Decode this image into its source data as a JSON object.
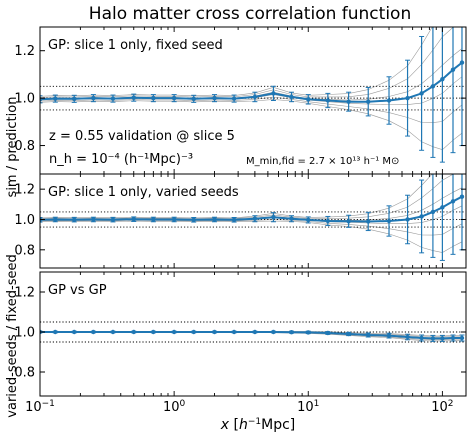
{
  "title": "Halo matter cross correlation function",
  "colors": {
    "data": "#1f77b4",
    "thin_lines": "#9a9a9a",
    "reference_lines": "#000000"
  },
  "chart_data": {
    "type": "line",
    "title": "Halo matter cross correlation function",
    "xlabel": "x [h⁻¹Mpc]",
    "x_scale": "log",
    "xlim": [
      0.1,
      150
    ],
    "x_ticks": [
      {
        "value": 0.1,
        "base": "10",
        "exp": "−1"
      },
      {
        "value": 1,
        "base": "10",
        "exp": "0"
      },
      {
        "value": 10,
        "base": "10",
        "exp": "1"
      },
      {
        "value": 100,
        "base": "10",
        "exp": "2"
      }
    ],
    "shared_ylabels": [
      {
        "text": "sim / prediction",
        "panels": [
          0,
          1
        ]
      },
      {
        "text": "varied-seeds / fixed-seed",
        "panels": [
          2
        ]
      }
    ],
    "reference_lines": [
      0.95,
      1.0,
      1.05
    ],
    "panels": [
      {
        "id": "top",
        "label": "GP: slice 1 only, fixed seed",
        "annotations": [
          "z = 0.55 validation @ slice 5",
          "n_h = 10⁻⁴ (h⁻¹Mpc)⁻³",
          "M_min,fid = 2.7 × 10¹³ h⁻¹ M⊙"
        ],
        "ylim": [
          0.68,
          1.3
        ],
        "yticks": [
          "0.8",
          "1.0",
          "1.2"
        ],
        "series": {
          "x": [
            0.1,
            0.13,
            0.18,
            0.25,
            0.35,
            0.5,
            0.7,
            1.0,
            1.4,
            2.0,
            2.8,
            4.0,
            5.5,
            7.5,
            10,
            14,
            20,
            28,
            40,
            55,
            70,
            85,
            100,
            120,
            140
          ],
          "y": [
            0.995,
            0.998,
            0.997,
            1.0,
            0.998,
            1.002,
            1.0,
            1.0,
            0.997,
            1.0,
            0.998,
            1.005,
            1.02,
            1.005,
            0.995,
            0.99,
            0.985,
            0.985,
            0.99,
            1.0,
            1.02,
            1.05,
            1.08,
            1.12,
            1.15
          ],
          "y_err": [
            0.015,
            0.015,
            0.015,
            0.015,
            0.015,
            0.015,
            0.015,
            0.015,
            0.015,
            0.015,
            0.015,
            0.02,
            0.03,
            0.02,
            0.02,
            0.03,
            0.04,
            0.06,
            0.1,
            0.16,
            0.24,
            0.3,
            0.35,
            0.35,
            0.35
          ]
        }
      },
      {
        "id": "middle",
        "label": "GP: slice 1 only, varied seeds",
        "ylim": [
          0.68,
          1.3
        ],
        "yticks": [
          "0.8",
          "1.0",
          "1.2"
        ],
        "series": {
          "x": [
            0.1,
            0.13,
            0.18,
            0.25,
            0.35,
            0.5,
            0.7,
            1.0,
            1.4,
            2.0,
            2.8,
            4.0,
            5.5,
            7.5,
            10,
            14,
            20,
            28,
            40,
            55,
            70,
            85,
            100,
            120,
            140
          ],
          "y": [
            0.998,
            1.0,
            0.999,
            1.0,
            0.999,
            1.002,
            1.0,
            1.0,
            0.998,
            1.0,
            0.998,
            1.005,
            1.015,
            1.005,
            0.997,
            0.99,
            0.988,
            0.987,
            0.99,
            1.0,
            1.02,
            1.05,
            1.08,
            1.12,
            1.15
          ],
          "y_err": [
            0.015,
            0.015,
            0.015,
            0.015,
            0.015,
            0.015,
            0.015,
            0.015,
            0.015,
            0.015,
            0.015,
            0.02,
            0.03,
            0.02,
            0.02,
            0.03,
            0.04,
            0.06,
            0.1,
            0.16,
            0.24,
            0.3,
            0.35,
            0.35,
            0.35
          ]
        }
      },
      {
        "id": "bottom",
        "label": "GP vs GP",
        "ylim": [
          0.68,
          1.3
        ],
        "yticks": [
          "0.8",
          "1.0",
          "1.2"
        ],
        "series": {
          "x": [
            0.1,
            0.13,
            0.18,
            0.25,
            0.35,
            0.5,
            0.7,
            1.0,
            1.4,
            2.0,
            2.8,
            4.0,
            5.5,
            7.5,
            10,
            14,
            20,
            28,
            40,
            55,
            70,
            85,
            100,
            120,
            140
          ],
          "y": [
            1.0,
            1.0,
            1.0,
            1.0,
            1.0,
            1.0,
            1.0,
            1.0,
            1.0,
            1.0,
            1.0,
            1.0,
            1.0,
            0.999,
            0.998,
            0.995,
            0.99,
            0.985,
            0.982,
            0.975,
            0.97,
            0.968,
            0.968,
            0.97,
            0.97
          ],
          "y_err": [
            0.004,
            0.004,
            0.004,
            0.004,
            0.004,
            0.004,
            0.004,
            0.004,
            0.004,
            0.004,
            0.004,
            0.004,
            0.004,
            0.005,
            0.006,
            0.007,
            0.008,
            0.01,
            0.012,
            0.014,
            0.015,
            0.015,
            0.015,
            0.015,
            0.015
          ]
        }
      }
    ]
  }
}
